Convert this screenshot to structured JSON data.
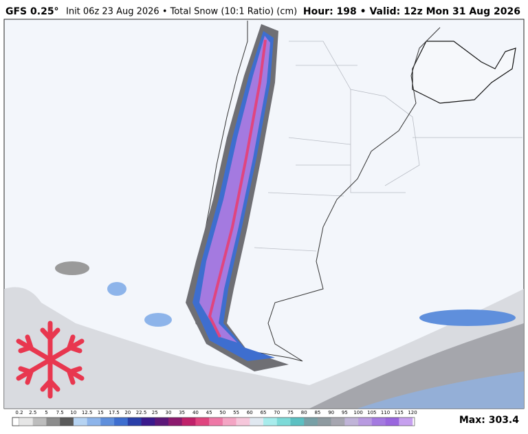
{
  "header": {
    "model": "GFS 0.25°",
    "init": "Init 06z 23 Aug 2026 • Total Snow (10:1 Ratio) (cm)",
    "valid": "Hour: 198 • Valid: 12z Mon 31 Aug 2026"
  },
  "colorbar": {
    "labels": [
      0.2,
      2.5,
      5,
      7.5,
      10,
      12.5,
      15,
      17.5,
      20,
      22.5,
      25,
      30,
      35,
      40,
      45,
      50,
      55,
      60,
      65,
      70,
      75,
      80,
      85,
      90,
      95,
      100,
      105,
      110,
      115,
      120
    ],
    "colors": [
      "#e6e6e6",
      "#bdbdbd",
      "#8c8c8c",
      "#5a5a5a",
      "#b6d3f2",
      "#8db4ea",
      "#5f8fdc",
      "#3e6ecf",
      "#2a3fa8",
      "#3a1a8c",
      "#5c1778",
      "#8c1a6e",
      "#c0226a",
      "#e0457f",
      "#ee78a6",
      "#f4a5c4",
      "#f6c7db",
      "#e0e8f0",
      "#a8ecec",
      "#7ddad8",
      "#5cc0c2",
      "#78a0a6",
      "#8e9aa0",
      "#a6a6b0",
      "#c0b4d8",
      "#b89ae0",
      "#a47ae0",
      "#9a66de",
      "#c6a0ee"
    ]
  },
  "max": "Max: 303.4"
}
